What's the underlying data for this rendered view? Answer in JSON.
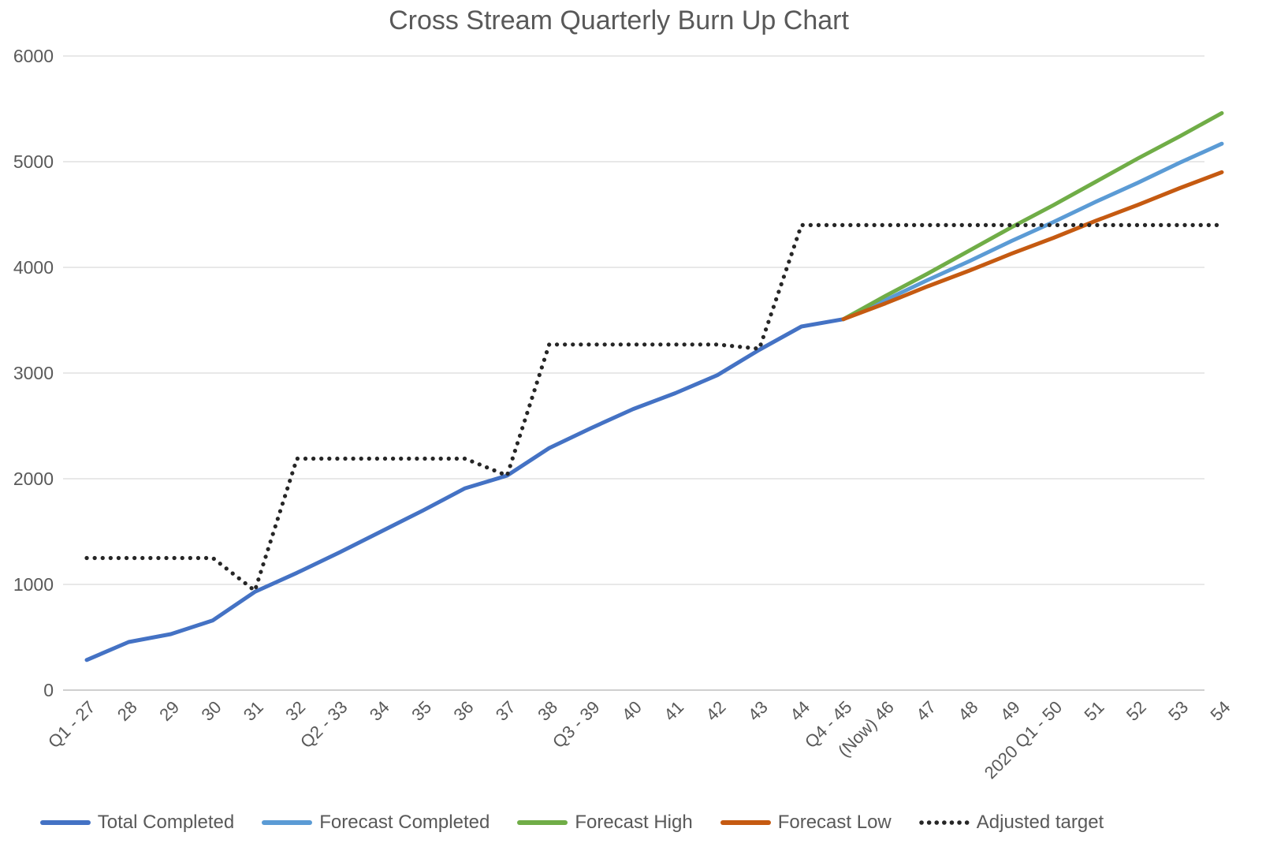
{
  "chart_data": {
    "type": "line",
    "title": "Cross Stream Quarterly Burn Up Chart",
    "xlabel": "",
    "ylabel": "",
    "ylim": [
      0,
      6000
    ],
    "yticks": [
      0,
      1000,
      2000,
      3000,
      4000,
      5000,
      6000
    ],
    "grid": true,
    "legend_position": "bottom",
    "text_color": "#595959",
    "grid_color": "#D9D9D9",
    "axis_color": "#BFBFBF",
    "categories": [
      "Q1 - 27",
      "28",
      "29",
      "30",
      "31",
      "32",
      "Q2 - 33",
      "34",
      "35",
      "36",
      "37",
      "38",
      "Q3 - 39",
      "40",
      "41",
      "42",
      "43",
      "44",
      "Q4 - 45",
      "(Now) 46",
      "47",
      "48",
      "49",
      "2020 Q1 - 50",
      "51",
      "52",
      "53",
      "54"
    ],
    "series": [
      {
        "name": "Total Completed",
        "color": "#4472C4",
        "style": "solid",
        "values": [
          285,
          455,
          530,
          660,
          930,
          1110,
          1300,
          1500,
          1700,
          1910,
          2030,
          2290,
          2480,
          2660,
          2810,
          2980,
          3220,
          3440,
          3510,
          null,
          null,
          null,
          null,
          null,
          null,
          null,
          null,
          null
        ]
      },
      {
        "name": "Forecast Completed",
        "color": "#5B9BD5",
        "style": "solid",
        "values": [
          null,
          null,
          null,
          null,
          null,
          null,
          null,
          null,
          null,
          null,
          null,
          null,
          null,
          null,
          null,
          null,
          null,
          null,
          3510,
          3690,
          3880,
          4060,
          4250,
          4430,
          4620,
          4800,
          4990,
          5170
        ]
      },
      {
        "name": "Forecast High",
        "color": "#70AD47",
        "style": "solid",
        "values": [
          null,
          null,
          null,
          null,
          null,
          null,
          null,
          null,
          null,
          null,
          null,
          null,
          null,
          null,
          null,
          null,
          null,
          null,
          3510,
          3730,
          3940,
          4160,
          4380,
          4590,
          4810,
          5030,
          5240,
          5460
        ]
      },
      {
        "name": "Forecast Low",
        "color": "#C55A11",
        "style": "solid",
        "values": [
          null,
          null,
          null,
          null,
          null,
          null,
          null,
          null,
          null,
          null,
          null,
          null,
          null,
          null,
          null,
          null,
          null,
          null,
          3510,
          3660,
          3820,
          3970,
          4130,
          4280,
          4440,
          4590,
          4750,
          4900
        ]
      },
      {
        "name": "Adjusted target",
        "color": "#262626",
        "style": "dotted",
        "values": [
          1250,
          1250,
          1250,
          1250,
          940,
          2190,
          2190,
          2190,
          2190,
          2190,
          2030,
          3270,
          3270,
          3270,
          3270,
          3270,
          3230,
          4400,
          4400,
          4400,
          4400,
          4400,
          4400,
          4400,
          4400,
          4400,
          4400,
          4400
        ]
      }
    ]
  }
}
